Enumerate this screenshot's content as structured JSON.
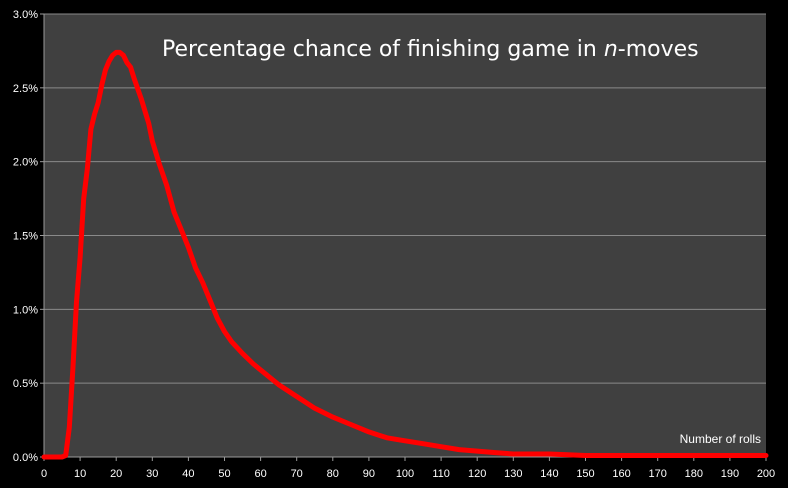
{
  "chart_data": {
    "type": "line",
    "title_prefix": "Percentage chance of finishing game in ",
    "title_italic": "n",
    "title_suffix": "-moves",
    "xlabel": "Number of rolls",
    "ylabel": "",
    "xlim": [
      0,
      200
    ],
    "ylim": [
      0,
      0.03
    ],
    "x_ticks": [
      0,
      10,
      20,
      30,
      40,
      50,
      60,
      70,
      80,
      90,
      100,
      110,
      120,
      130,
      140,
      150,
      160,
      170,
      180,
      190,
      200
    ],
    "y_ticks": [
      0,
      0.005,
      0.01,
      0.015,
      0.02,
      0.025,
      0.03
    ],
    "y_tick_labels": [
      "0.0%",
      "0.5%",
      "1.0%",
      "1.5%",
      "2.0%",
      "2.5%",
      "3.0%"
    ],
    "grid": true,
    "colors": {
      "background": "#000000",
      "plot_area": "#404040",
      "gridline": "#8a8a8a",
      "series": "#ff0000",
      "text": "#ffffff"
    },
    "series": [
      {
        "x": [
          0,
          5,
          6,
          7,
          8,
          9,
          10,
          11,
          12,
          13,
          14,
          15,
          16,
          17,
          18,
          19,
          20,
          21,
          22,
          23,
          24,
          25,
          26,
          27,
          28,
          29,
          30,
          32,
          34,
          36,
          38,
          40,
          42,
          44,
          46,
          48,
          50,
          52,
          55,
          58,
          60,
          65,
          70,
          75,
          80,
          85,
          90,
          95,
          100,
          105,
          110,
          115,
          120,
          125,
          130,
          140,
          150,
          160,
          170,
          180,
          190,
          200
        ],
        "values": [
          0,
          0,
          0.0001,
          0.002,
          0.006,
          0.0105,
          0.0135,
          0.0175,
          0.0195,
          0.0222,
          0.0232,
          0.024,
          0.0252,
          0.0262,
          0.0268,
          0.0272,
          0.0274,
          0.0274,
          0.0272,
          0.0267,
          0.0264,
          0.0256,
          0.0249,
          0.0242,
          0.0234,
          0.0226,
          0.0214,
          0.0198,
          0.0184,
          0.0166,
          0.0154,
          0.0142,
          0.0128,
          0.0118,
          0.0106,
          0.0094,
          0.0085,
          0.0078,
          0.007,
          0.0063,
          0.0059,
          0.0049,
          0.0041,
          0.0033,
          0.0027,
          0.0022,
          0.0017,
          0.0013,
          0.0011,
          0.0009,
          0.0007,
          0.0005,
          0.0004,
          0.0003,
          0.0002,
          0.0002,
          0.0001,
          0.0001,
          0.0001,
          0.0001,
          0.0001,
          0.0001
        ]
      }
    ]
  }
}
